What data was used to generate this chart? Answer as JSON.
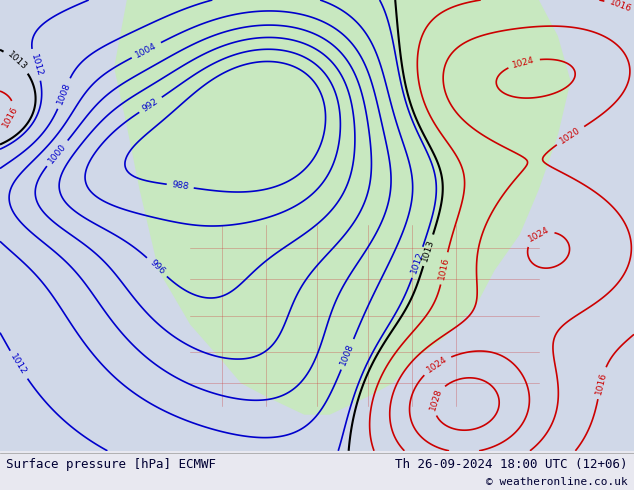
{
  "title_left": "Surface pressure [hPa] ECMWF",
  "title_right": "Th 26-09-2024 18:00 UTC (12+06)",
  "copyright": "© weatheronline.co.uk",
  "bg_color": "#d0d8e8",
  "land_color": "#c8e8c0",
  "text_color_blue": "#0000cc",
  "text_color_red": "#cc0000",
  "text_color_black": "#000000",
  "footer_bg": "#e8e8f0",
  "figsize": [
    6.34,
    4.9
  ],
  "dpi": 100
}
